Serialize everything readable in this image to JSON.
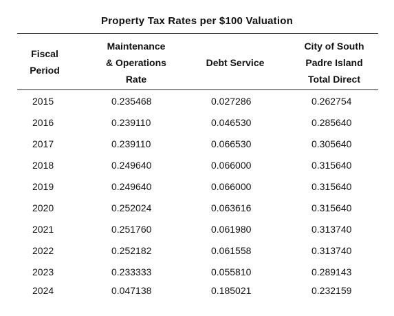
{
  "title": "Property Tax Rates per $100 Valuation",
  "headers": {
    "fiscal": [
      "Fiscal",
      "Period"
    ],
    "maintenance": [
      "Maintenance",
      "& Operations",
      "Rate"
    ],
    "debt": [
      "Debt Service"
    ],
    "total": [
      "City of South",
      "Padre Island",
      "Total Direct"
    ]
  },
  "rows": [
    {
      "year": "2015",
      "maintenance": "0.235468",
      "debt": "0.027286",
      "total": "0.262754"
    },
    {
      "year": "2016",
      "maintenance": "0.239110",
      "debt": "0.046530",
      "total": "0.285640"
    },
    {
      "year": "2017",
      "maintenance": "0.239110",
      "debt": "0.066530",
      "total": "0.305640"
    },
    {
      "year": "2018",
      "maintenance": "0.249640",
      "debt": "0.066000",
      "total": "0.315640"
    },
    {
      "year": "2019",
      "maintenance": "0.249640",
      "debt": "0.066000",
      "total": "0.315640"
    },
    {
      "year": "2020",
      "maintenance": "0.252024",
      "debt": "0.063616",
      "total": "0.315640"
    },
    {
      "year": "2021",
      "maintenance": "0.251760",
      "debt": "0.061980",
      "total": "0.313740"
    },
    {
      "year": "2022",
      "maintenance": "0.252182",
      "debt": "0.061558",
      "total": "0.313740"
    },
    {
      "year": "2023",
      "maintenance": "0.233333",
      "debt": "0.055810",
      "total": "0.289143"
    },
    {
      "year": "2024",
      "maintenance": "0.047138",
      "debt": "0.185021",
      "total": "0.232159"
    }
  ]
}
